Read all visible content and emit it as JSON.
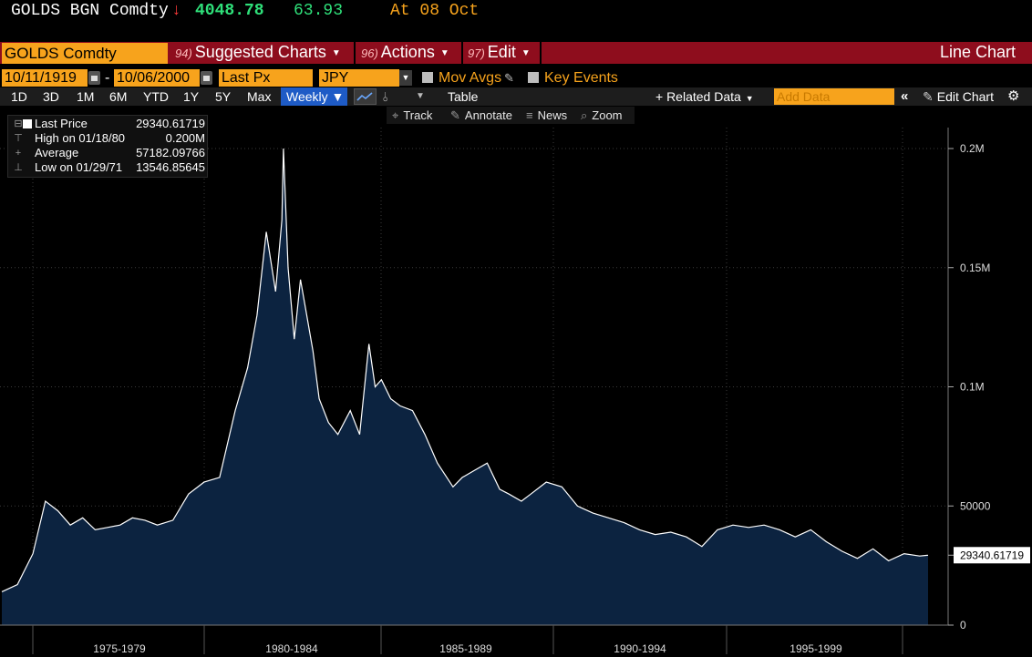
{
  "ticker": {
    "symbol": "GOLDS BGN Comdty",
    "arrow": "↓",
    "last": "4048.78",
    "change": "63.93",
    "time": "At 08 Oct"
  },
  "menu": {
    "security": "GOLDS Comdty",
    "suggested_num": "94)",
    "suggested": "Suggested Charts",
    "actions_num": "96)",
    "actions": "Actions",
    "edit_num": "97)",
    "edit": "Edit",
    "chart_type": "Line Chart"
  },
  "controls": {
    "start_date": "10/11/1919",
    "end_date": "10/06/2000",
    "dash": "-",
    "field": "Last Px",
    "currency": "JPY",
    "mov_avgs": "Mov Avgs",
    "key_events": "Key Events"
  },
  "toolbar": {
    "periods": [
      "1D",
      "3D",
      "1M",
      "6M",
      "YTD",
      "1Y",
      "5Y",
      "Max"
    ],
    "frequency": "Weekly ▼",
    "table": "Table",
    "related_data": "+ Related Data",
    "add_data_placeholder": "Add Data",
    "edit_chart": "Edit Chart"
  },
  "tools": {
    "track": "Track",
    "annotate": "Annotate",
    "news": "News",
    "zoom": "Zoom"
  },
  "legend": {
    "last_label": "Last Price",
    "last_value": "29340.61719",
    "high_label": "High on 01/18/80",
    "high_value": "0.200M",
    "avg_label": "Average",
    "avg_value": "57182.09766",
    "low_label": "Low on 01/29/71",
    "low_value": "13546.85645"
  },
  "colors": {
    "orange": "#f7a31c",
    "menu_red": "#8e0d1d",
    "fill": "#0c2340",
    "line": "#ffffff",
    "up_green": "#2fe07a",
    "down_red": "#ff3b3b"
  },
  "chart_data": {
    "type": "area",
    "series_name": "Last Price",
    "currency": "JPY",
    "y_ticks": [
      0,
      50000,
      100000,
      150000,
      200000
    ],
    "y_tick_labels": [
      "0",
      "50000",
      "0.1M",
      "0.15M",
      "0.2M"
    ],
    "ylim": [
      0,
      200000
    ],
    "x_labels": [
      "1975-1979",
      "1980-1984",
      "1985-1989",
      "1990-1994",
      "1995-1999"
    ],
    "last_value_label": "29340.61719",
    "grid": true,
    "x": [
      1971.0,
      1971.5,
      1972.0,
      1972.4,
      1972.8,
      1973.2,
      1973.6,
      1974.0,
      1974.4,
      1974.8,
      1975.2,
      1975.6,
      1976.0,
      1976.5,
      1977.0,
      1977.5,
      1978.0,
      1978.5,
      1978.9,
      1979.2,
      1979.5,
      1979.8,
      1980.0,
      1980.05,
      1980.2,
      1980.4,
      1980.6,
      1980.8,
      1981.0,
      1981.2,
      1981.5,
      1981.8,
      1982.2,
      1982.5,
      1982.8,
      1983.0,
      1983.2,
      1983.5,
      1983.8,
      1984.2,
      1984.6,
      1985.0,
      1985.5,
      1985.8,
      1986.2,
      1986.6,
      1987.0,
      1987.3,
      1987.7,
      1988.0,
      1988.5,
      1989.0,
      1989.5,
      1990.0,
      1990.5,
      1991.0,
      1991.5,
      1992.0,
      1992.5,
      1993.0,
      1993.5,
      1994.0,
      1994.5,
      1995.0,
      1995.5,
      1996.0,
      1996.5,
      1997.0,
      1997.5,
      1998.0,
      1998.5,
      1999.0,
      1999.5,
      2000.0,
      2000.5,
      2000.77
    ],
    "y": [
      14000,
      17000,
      30000,
      52000,
      48000,
      42000,
      45000,
      40000,
      41000,
      42000,
      45000,
      44000,
      42000,
      44000,
      55000,
      60000,
      62000,
      90000,
      108000,
      130000,
      165000,
      140000,
      170000,
      200000,
      150000,
      120000,
      145000,
      130000,
      115000,
      95000,
      85000,
      80000,
      90000,
      80000,
      118000,
      100000,
      103000,
      95000,
      92000,
      90000,
      80000,
      68000,
      58000,
      62000,
      65000,
      68000,
      57000,
      55000,
      52000,
      55000,
      60000,
      58000,
      50000,
      47000,
      45000,
      43000,
      40000,
      38000,
      39000,
      37000,
      33000,
      40000,
      42000,
      41000,
      42000,
      40000,
      37000,
      40000,
      35000,
      31000,
      28000,
      32000,
      27000,
      30000,
      29000,
      29340
    ]
  }
}
